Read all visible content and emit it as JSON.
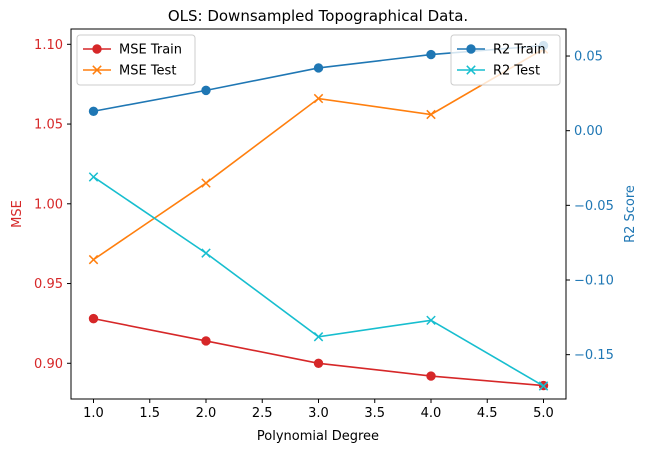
{
  "chart_data": {
    "type": "line",
    "title": "OLS: Downsampled Topographical Data.",
    "xlabel": "Polynomial Degree",
    "x": [
      1,
      2,
      3,
      4,
      5
    ],
    "x_ticks": [
      "1.0",
      "1.5",
      "2.0",
      "2.5",
      "3.0",
      "3.5",
      "4.0",
      "4.5",
      "5.0"
    ],
    "x_tick_values": [
      1.0,
      1.5,
      2.0,
      2.5,
      3.0,
      3.5,
      4.0,
      4.5,
      5.0
    ],
    "xlim": [
      0.8,
      5.2
    ],
    "grid": false,
    "left_axis": {
      "label": "MSE",
      "color": "#d62728",
      "ylim": [
        0.8776,
        1.1096
      ],
      "ticks": [
        "0.90",
        "0.95",
        "1.00",
        "1.05",
        "1.10"
      ],
      "tick_values": [
        0.9,
        0.95,
        1.0,
        1.05,
        1.1
      ],
      "legend_position": "upper-left",
      "series": [
        {
          "name": "MSE Train",
          "color": "#d62728",
          "marker": "circle",
          "values": [
            0.928,
            0.914,
            0.9,
            0.892,
            0.886
          ]
        },
        {
          "name": "MSE Test",
          "color": "#ff7f0e",
          "marker": "x",
          "values": [
            0.965,
            1.013,
            1.066,
            1.056,
            1.097
          ]
        }
      ]
    },
    "right_axis": {
      "label": "R2 Score",
      "color": "#1f77b4",
      "ylim": [
        -0.1797,
        0.0681
      ],
      "ticks": [
        "−0.15",
        "−0.10",
        "−0.05",
        "0.00",
        "0.05"
      ],
      "tick_values": [
        -0.15,
        -0.1,
        -0.05,
        0.0,
        0.05
      ],
      "legend_position": "upper-right",
      "series": [
        {
          "name": "R2 Train",
          "color": "#1f77b4",
          "marker": "circle",
          "values": [
            0.013,
            0.027,
            0.042,
            0.051,
            0.057
          ]
        },
        {
          "name": "R2 Test",
          "color": "#17becf",
          "marker": "x",
          "values": [
            -0.031,
            -0.082,
            -0.138,
            -0.127,
            -0.171
          ]
        }
      ]
    }
  }
}
